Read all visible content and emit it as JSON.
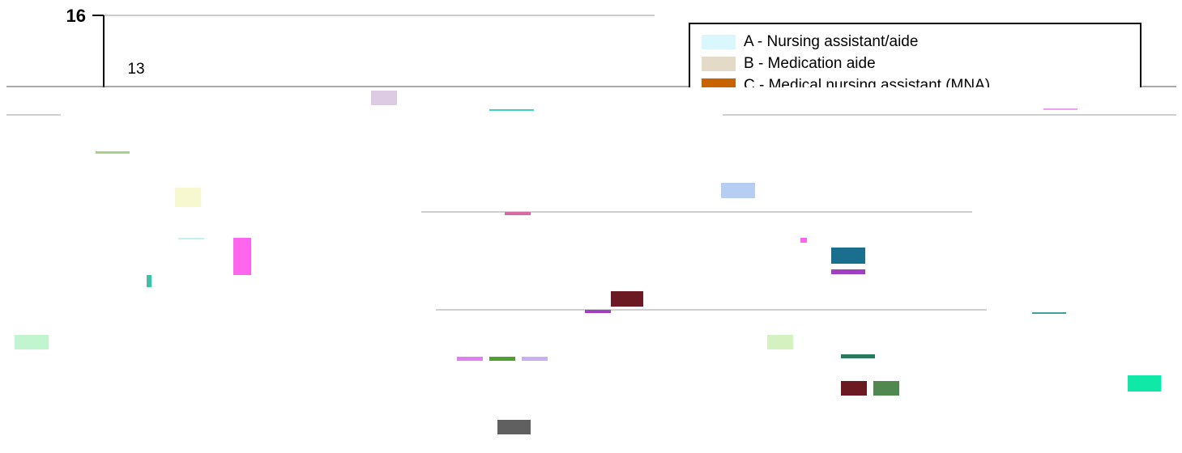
{
  "chart_data": {
    "type": "bar",
    "y_tick_labels": [
      "16"
    ],
    "ylim": [
      0,
      16
    ],
    "grid": true,
    "legend_position": "top-right",
    "series": [
      {
        "name": "A - Nursing assistant/aide",
        "color": "#d9f7fc"
      },
      {
        "name": "B - Medication aide",
        "color": "#e3dac8"
      },
      {
        "name": "C - Medical nursing assistant (MNA)",
        "color": "#c86400"
      }
    ],
    "data_labels": [
      "13"
    ],
    "values": [
      13
    ]
  }
}
